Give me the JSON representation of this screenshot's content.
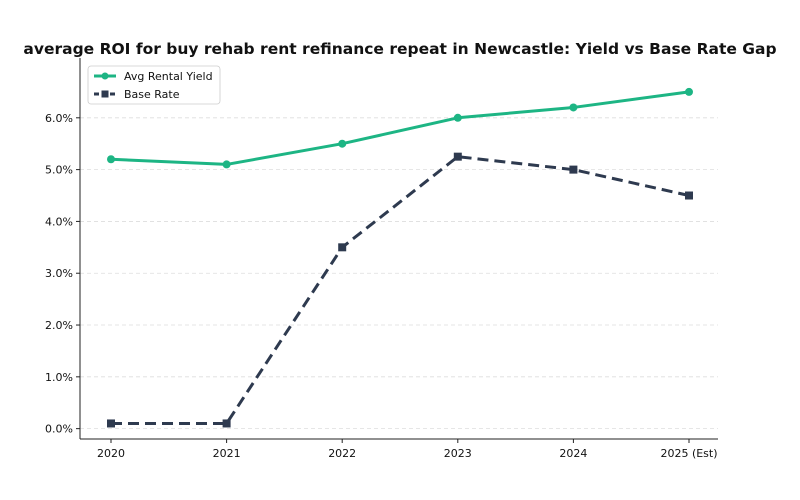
{
  "chart_data": {
    "type": "line",
    "title": "average ROI for buy rehab rent refinance repeat in Newcastle: Yield vs Base Rate Gap",
    "xlabel": "",
    "ylabel": "",
    "categories": [
      "2020",
      "2021",
      "2022",
      "2023",
      "2024",
      "2025 (Est)"
    ],
    "ylim": [
      -0.2,
      7.0
    ],
    "yticks": [
      0,
      1,
      2,
      3,
      4,
      5,
      6
    ],
    "ytick_labels": [
      "0.0%",
      "1.0%",
      "2.0%",
      "3.0%",
      "4.0%",
      "5.0%",
      "6.0%"
    ],
    "grid": "horizontal dashed",
    "legend_position": "top-left",
    "series": [
      {
        "name": "Avg Rental Yield",
        "values": [
          5.2,
          5.1,
          5.5,
          6.0,
          6.2,
          6.5
        ],
        "color": "#1db584",
        "line_style": "solid",
        "marker": "circle"
      },
      {
        "name": "Base Rate",
        "values": [
          0.1,
          0.1,
          3.5,
          5.25,
          5.0,
          4.5
        ],
        "color": "#2e3a4f",
        "line_style": "dashed",
        "marker": "square"
      }
    ]
  }
}
